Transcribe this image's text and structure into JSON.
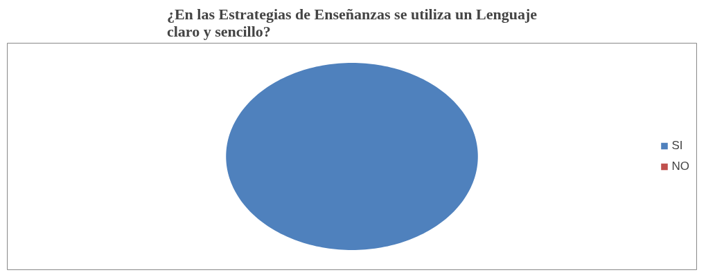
{
  "chart_data": {
    "type": "pie",
    "title": "¿En las Estrategias de Enseñanzas se utiliza un Lenguaje claro y sencillo?",
    "categories": [
      "SI",
      "NO"
    ],
    "values": [
      100,
      0
    ],
    "colors": [
      "#4f81bd",
      "#c0504d"
    ],
    "legend": "right"
  }
}
